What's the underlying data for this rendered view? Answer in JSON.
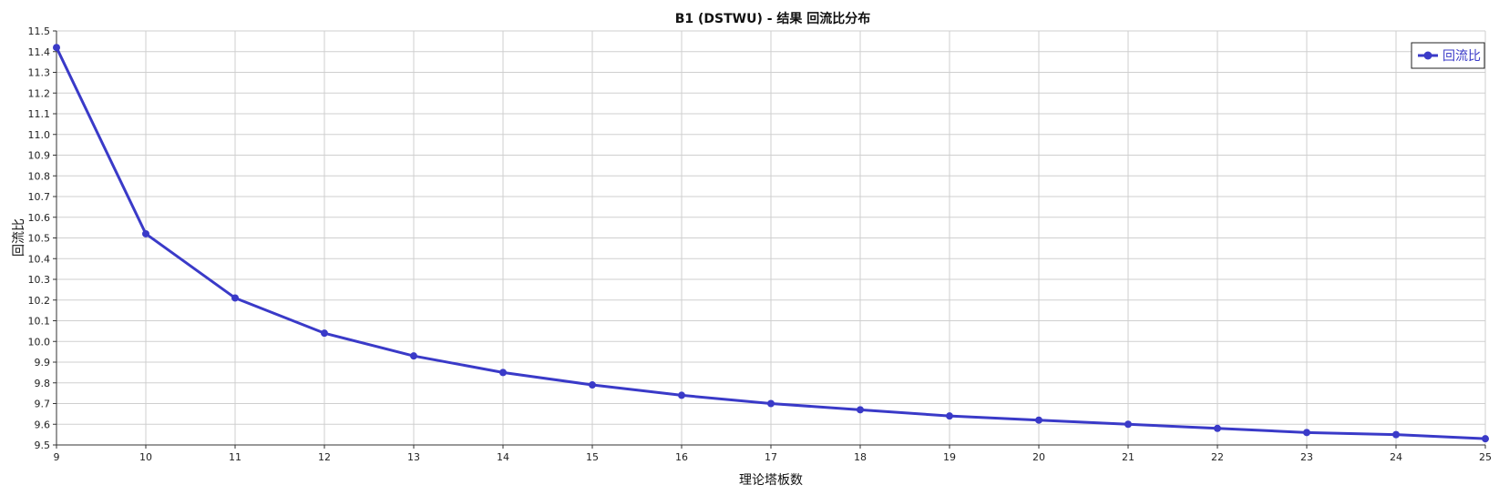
{
  "chart_data": {
    "type": "line",
    "title": "B1 (DSTWU) - 结果 回流比分布",
    "xlabel": "理论塔板数",
    "ylabel": "回流比",
    "xlim": [
      9,
      25
    ],
    "ylim": [
      9.5,
      11.5
    ],
    "x_ticks": [
      9,
      10,
      11,
      12,
      13,
      14,
      15,
      16,
      17,
      18,
      19,
      20,
      21,
      22,
      23,
      24,
      25
    ],
    "y_ticks": [
      9.5,
      9.6,
      9.7,
      9.8,
      9.9,
      10.0,
      10.1,
      10.2,
      10.3,
      10.4,
      10.5,
      10.6,
      10.7,
      10.8,
      10.9,
      11.0,
      11.1,
      11.2,
      11.3,
      11.4,
      11.5
    ],
    "grid": true,
    "legend_position": "top-right",
    "series": [
      {
        "name": "回流比",
        "color": "#3a3ac8",
        "x": [
          9,
          10,
          11,
          12,
          13,
          14,
          15,
          16,
          17,
          18,
          19,
          20,
          21,
          22,
          23,
          24,
          25
        ],
        "y": [
          11.42,
          10.52,
          10.21,
          10.04,
          9.93,
          9.85,
          9.79,
          9.74,
          9.7,
          9.67,
          9.64,
          9.62,
          9.6,
          9.58,
          9.56,
          9.55,
          9.53
        ]
      }
    ]
  }
}
